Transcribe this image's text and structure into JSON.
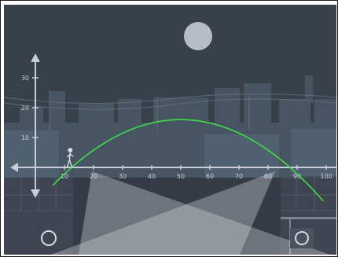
{
  "game": {
    "axes": {
      "x_ticks": [
        "10",
        "20",
        "30",
        "40",
        "50",
        "60",
        "70",
        "80",
        "90",
        "100"
      ],
      "y_ticks": [
        "10",
        "20",
        "30"
      ],
      "x_range": [
        0,
        100
      ],
      "y_range": [
        -10,
        35
      ]
    },
    "trajectory": {
      "shape": "parabola",
      "color": "#3fdc4a",
      "start": [
        6,
        -6
      ],
      "apex": [
        50,
        16
      ],
      "end": [
        99,
        -6
      ]
    },
    "player": {
      "x_value": 12,
      "icon": "stick-figure-icon"
    },
    "floor_buttons": [
      {
        "name": "circle-button",
        "icon": "circle-icon"
      },
      {
        "name": "circle-button",
        "icon": "circle-icon"
      }
    ],
    "colors": {
      "sky": "#39404a",
      "buildings": "#4a5866",
      "floor": "#3e4550",
      "axis": "#c9ced6",
      "moon": "#c8ccd2"
    }
  }
}
